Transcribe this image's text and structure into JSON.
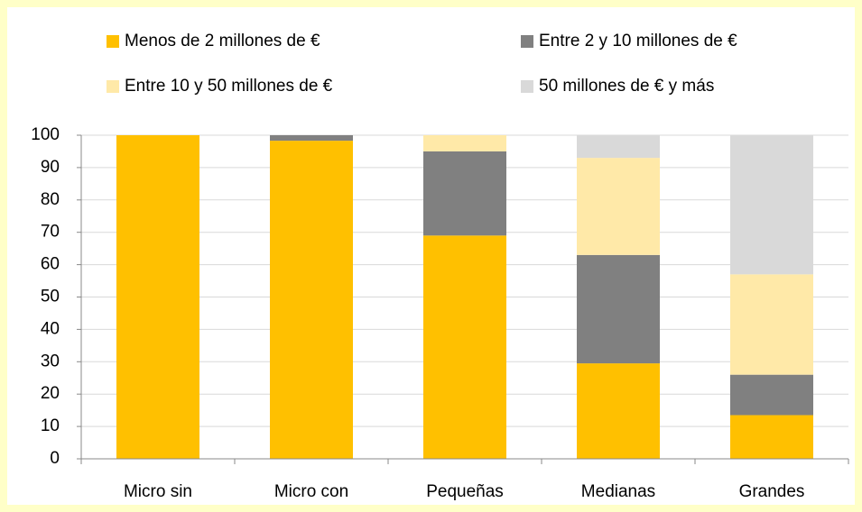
{
  "chart_data": {
    "type": "stacked_bar",
    "categories": [
      "Micro sin",
      "Micro con",
      "Pequeñas",
      "Medianas",
      "Grandes"
    ],
    "series": [
      {
        "name": "Menos de 2 millones de €",
        "color": "#ffc000",
        "values": [
          100,
          98.3,
          69,
          29.5,
          13.5
        ]
      },
      {
        "name": "Entre 2 y 10 millones de €",
        "color": "#808080",
        "values": [
          0,
          1.7,
          26,
          33.5,
          12.5
        ]
      },
      {
        "name": "Entre 10 y 50 millones de €",
        "color": "#ffe9a8",
        "values": [
          0,
          0,
          5,
          30,
          31
        ]
      },
      {
        "name": "50 millones de € y más",
        "color": "#d9d9d9",
        "values": [
          0,
          0,
          0,
          7,
          43
        ]
      }
    ],
    "ylim": [
      0,
      100
    ],
    "yticks": [
      0,
      10,
      20,
      30,
      40,
      50,
      60,
      70,
      80,
      90,
      100
    ],
    "grid": true,
    "legend": "top"
  }
}
